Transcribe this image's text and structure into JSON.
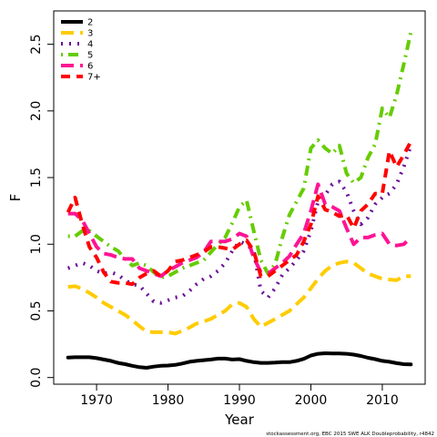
{
  "chart_data": {
    "type": "line",
    "xlabel": "Year",
    "ylabel": "F",
    "xlim": [
      1964,
      2016
    ],
    "ylim": [
      -0.05,
      2.75
    ],
    "xticks": [
      1970,
      1980,
      1990,
      2000,
      2010
    ],
    "yticks": [
      0.0,
      0.5,
      1.0,
      1.5,
      2.0,
      2.5
    ],
    "ytick_labels": [
      "0.0",
      "0.5",
      "1.0",
      "1.5",
      "2.0",
      "2.5"
    ],
    "legend_position": "top-left",
    "footer": "stockassessment.org, EBC 2015 SWE ALK Doubleprobability, r4842",
    "x": [
      1966,
      1967,
      1968,
      1969,
      1970,
      1971,
      1972,
      1973,
      1974,
      1975,
      1976,
      1977,
      1978,
      1979,
      1980,
      1981,
      1982,
      1983,
      1984,
      1985,
      1986,
      1987,
      1988,
      1989,
      1990,
      1991,
      1992,
      1993,
      1994,
      1995,
      1996,
      1997,
      1998,
      1999,
      2000,
      2001,
      2002,
      2003,
      2004,
      2005,
      2006,
      2007,
      2008,
      2009,
      2010,
      2011,
      2012,
      2013,
      2014
    ],
    "series": [
      {
        "name": "2",
        "color": "#000000",
        "dash": "solid",
        "values": [
          0.15,
          0.152,
          0.152,
          0.152,
          0.145,
          0.135,
          0.125,
          0.11,
          0.1,
          0.088,
          0.078,
          0.073,
          0.082,
          0.088,
          0.09,
          0.095,
          0.105,
          0.118,
          0.125,
          0.13,
          0.135,
          0.142,
          0.142,
          0.135,
          0.138,
          0.125,
          0.115,
          0.11,
          0.11,
          0.112,
          0.115,
          0.115,
          0.125,
          0.14,
          0.165,
          0.178,
          0.182,
          0.18,
          0.18,
          0.178,
          0.172,
          0.162,
          0.148,
          0.138,
          0.125,
          0.118,
          0.108,
          0.1,
          0.098
        ]
      },
      {
        "name": "3",
        "color": "#ffcc00",
        "dash": "longdash",
        "values": [
          0.68,
          0.685,
          0.665,
          0.635,
          0.6,
          0.56,
          0.53,
          0.5,
          0.47,
          0.43,
          0.385,
          0.345,
          0.34,
          0.34,
          0.34,
          0.33,
          0.35,
          0.375,
          0.405,
          0.42,
          0.44,
          0.47,
          0.5,
          0.55,
          0.56,
          0.53,
          0.44,
          0.38,
          0.41,
          0.44,
          0.47,
          0.5,
          0.55,
          0.6,
          0.67,
          0.74,
          0.8,
          0.84,
          0.86,
          0.87,
          0.86,
          0.82,
          0.78,
          0.76,
          0.74,
          0.735,
          0.73,
          0.76,
          0.76
        ]
      },
      {
        "name": "4",
        "color": "#6a0d99",
        "dash": "dotted",
        "values": [
          0.82,
          0.84,
          0.86,
          0.84,
          0.8,
          0.78,
          0.79,
          0.77,
          0.73,
          0.7,
          0.69,
          0.63,
          0.57,
          0.56,
          0.58,
          0.6,
          0.61,
          0.65,
          0.7,
          0.74,
          0.76,
          0.8,
          0.86,
          0.95,
          1.02,
          1.0,
          0.95,
          0.65,
          0.6,
          0.67,
          0.77,
          0.82,
          0.88,
          0.95,
          1.1,
          1.32,
          1.37,
          1.45,
          1.47,
          1.39,
          1.25,
          1.15,
          1.2,
          1.3,
          1.35,
          1.38,
          1.45,
          1.58,
          1.74
        ]
      },
      {
        "name": "5",
        "color": "#66cc00",
        "dash": "dashdot",
        "values": [
          1.06,
          1.06,
          1.1,
          1.1,
          1.06,
          1.02,
          0.98,
          0.95,
          0.89,
          0.84,
          0.86,
          0.84,
          0.79,
          0.75,
          0.76,
          0.79,
          0.82,
          0.84,
          0.86,
          0.88,
          0.94,
          1.0,
          1.05,
          1.16,
          1.28,
          1.33,
          1.1,
          0.88,
          0.78,
          0.85,
          1.05,
          1.22,
          1.32,
          1.42,
          1.72,
          1.78,
          1.72,
          1.68,
          1.74,
          1.53,
          1.46,
          1.5,
          1.65,
          1.75,
          2.02,
          1.95,
          2.12,
          2.35,
          2.59
        ]
      },
      {
        "name": "6",
        "color": "#ff1493",
        "dash": "longdash",
        "values": [
          1.23,
          1.23,
          1.18,
          1.08,
          0.98,
          0.93,
          0.92,
          0.9,
          0.89,
          0.89,
          0.82,
          0.8,
          0.78,
          0.76,
          0.8,
          0.83,
          0.86,
          0.88,
          0.9,
          0.94,
          1.02,
          1.02,
          1.02,
          1.04,
          1.08,
          1.06,
          0.9,
          0.79,
          0.78,
          0.82,
          0.86,
          0.91,
          1.0,
          1.08,
          1.25,
          1.45,
          1.3,
          1.28,
          1.25,
          1.12,
          1.0,
          1.05,
          1.05,
          1.07,
          1.08,
          1.0,
          0.99,
          1.0,
          1.05
        ]
      },
      {
        "name": "7+",
        "color": "#ff0000",
        "dash": "dashed",
        "values": [
          1.24,
          1.35,
          1.15,
          0.98,
          0.9,
          0.79,
          0.72,
          0.71,
          0.71,
          0.7,
          0.75,
          0.78,
          0.8,
          0.76,
          0.8,
          0.87,
          0.88,
          0.9,
          0.92,
          0.94,
          0.98,
          0.98,
          0.97,
          0.96,
          1.0,
          1.03,
          0.95,
          0.76,
          0.76,
          0.8,
          0.84,
          0.88,
          0.92,
          1.02,
          1.15,
          1.36,
          1.26,
          1.24,
          1.21,
          1.22,
          1.12,
          1.25,
          1.3,
          1.38,
          1.38,
          1.7,
          1.58,
          1.67,
          1.77
        ]
      }
    ]
  }
}
